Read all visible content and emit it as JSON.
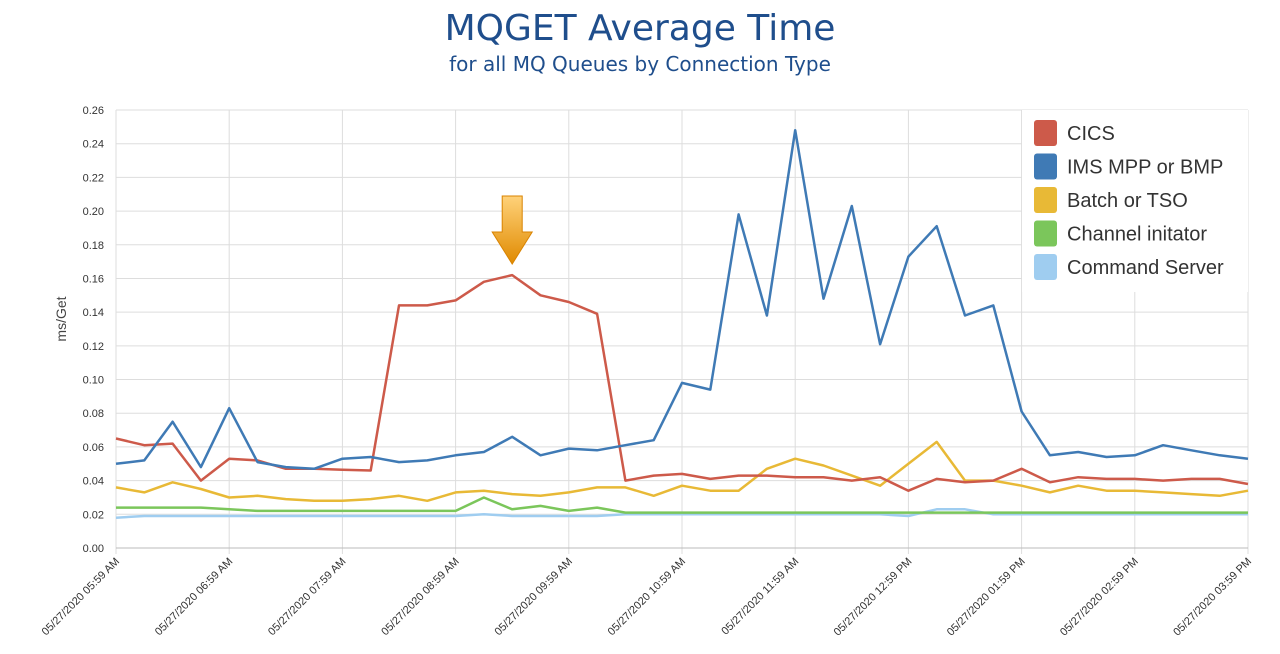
{
  "title": "MQGET Average Time",
  "subtitle": "for all MQ Queues by Connection Type",
  "chart_data": {
    "type": "line",
    "ylabel": "ms/Get",
    "ylim": [
      0,
      0.26
    ],
    "yticks": [
      "0.00",
      "0.02",
      "0.04",
      "0.06",
      "0.08",
      "0.10",
      "0.12",
      "0.14",
      "0.16",
      "0.18",
      "0.20",
      "0.22",
      "0.24",
      "0.26"
    ],
    "xticks": [
      "05/27/2020 05:59 AM",
      "05/27/2020 06:59 AM",
      "05/27/2020 07:59 AM",
      "05/27/2020 08:59 AM",
      "05/27/2020 09:59 AM",
      "05/27/2020 10:59 AM",
      "05/27/2020 11:59 AM",
      "05/27/2020 12:59 PM",
      "05/27/2020 01:59 PM",
      "05/27/2020 02:59 PM",
      "05/27/2020 03:59 PM"
    ],
    "points_per_hour": 4,
    "grid": true,
    "legend_position": "top-right",
    "annotation": {
      "type": "down-arrow",
      "x_index": 14,
      "color": "#f39c12"
    },
    "series": [
      {
        "name": "CICS",
        "color": "#cd5a4a",
        "values": [
          0.065,
          0.061,
          0.062,
          0.04,
          0.053,
          0.052,
          0.047,
          0.047,
          0.0465,
          0.046,
          0.144,
          0.144,
          0.147,
          0.158,
          0.162,
          0.15,
          0.146,
          0.139,
          0.04,
          0.043,
          0.044,
          0.041,
          0.043,
          0.043,
          0.042,
          0.042,
          0.04,
          0.042,
          0.034,
          0.041,
          0.039,
          0.04,
          0.047,
          0.039,
          0.042,
          0.041,
          0.041,
          0.04,
          0.041,
          0.041,
          0.038
        ]
      },
      {
        "name": "IMS MPP or BMP",
        "color": "#3f7ab5",
        "values": [
          0.05,
          0.052,
          0.075,
          0.048,
          0.083,
          0.051,
          0.048,
          0.047,
          0.053,
          0.054,
          0.051,
          0.052,
          0.055,
          0.057,
          0.066,
          0.055,
          0.059,
          0.058,
          0.061,
          0.064,
          0.098,
          0.094,
          0.198,
          0.138,
          0.248,
          0.148,
          0.203,
          0.121,
          0.173,
          0.191,
          0.138,
          0.144,
          0.081,
          0.055,
          0.057,
          0.054,
          0.055,
          0.061,
          0.058,
          0.055,
          0.053
        ]
      },
      {
        "name": "Batch or TSO",
        "color": "#e8b936",
        "values": [
          0.036,
          0.033,
          0.039,
          0.035,
          0.03,
          0.031,
          0.029,
          0.028,
          0.028,
          0.029,
          0.031,
          0.028,
          0.033,
          0.034,
          0.032,
          0.031,
          0.033,
          0.036,
          0.036,
          0.031,
          0.037,
          0.034,
          0.034,
          0.047,
          0.053,
          0.049,
          0.043,
          0.037,
          0.05,
          0.063,
          0.04,
          0.04,
          0.037,
          0.033,
          0.037,
          0.034,
          0.034,
          0.033,
          0.032,
          0.031,
          0.034
        ]
      },
      {
        "name": "Channel initator",
        "color": "#7bc65b",
        "values": [
          0.024,
          0.024,
          0.024,
          0.024,
          0.023,
          0.022,
          0.022,
          0.022,
          0.022,
          0.022,
          0.022,
          0.022,
          0.022,
          0.03,
          0.023,
          0.025,
          0.022,
          0.024,
          0.021,
          0.021,
          0.021,
          0.021,
          0.021,
          0.021,
          0.021,
          0.021,
          0.021,
          0.021,
          0.021,
          0.021,
          0.021,
          0.021,
          0.021,
          0.021,
          0.021,
          0.021,
          0.021,
          0.021,
          0.021,
          0.021,
          0.021
        ]
      },
      {
        "name": "Command Server",
        "color": "#9fcdf0",
        "values": [
          0.018,
          0.019,
          0.019,
          0.019,
          0.019,
          0.019,
          0.019,
          0.019,
          0.019,
          0.019,
          0.019,
          0.019,
          0.019,
          0.02,
          0.019,
          0.019,
          0.019,
          0.019,
          0.02,
          0.02,
          0.02,
          0.02,
          0.02,
          0.02,
          0.02,
          0.02,
          0.02,
          0.02,
          0.019,
          0.023,
          0.023,
          0.02,
          0.02,
          0.02,
          0.02,
          0.02,
          0.02,
          0.02,
          0.02,
          0.02,
          0.02
        ]
      }
    ]
  }
}
